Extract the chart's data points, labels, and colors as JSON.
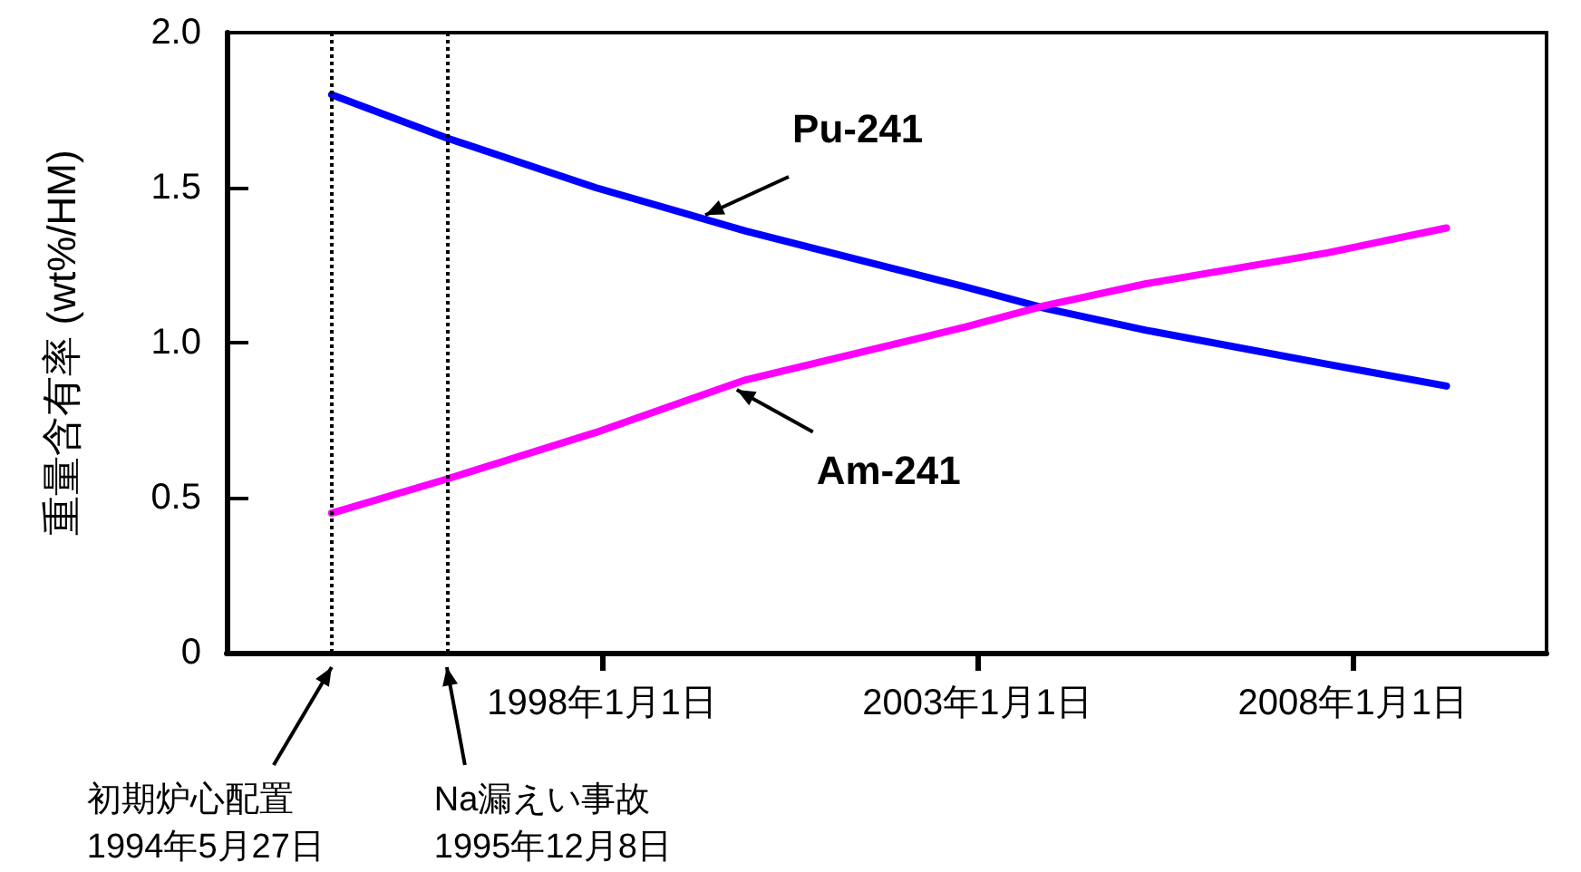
{
  "chart_data": {
    "type": "line",
    "ylabel": "重量含有率 (wt%/HM)",
    "xlim": [
      "1993-01-01",
      "2010-08-01"
    ],
    "xticks": [
      {
        "value": "1998-01-01",
        "label": "1998年1月1日"
      },
      {
        "value": "2003-01-01",
        "label": "2003年1月1日"
      },
      {
        "value": "2008-01-01",
        "label": "2008年1月1日"
      }
    ],
    "ylim": [
      0,
      2
    ],
    "yticks": [
      0,
      {
        "value": 0.5,
        "label": "0.5"
      },
      {
        "value": 1,
        "label": "1.0"
      },
      {
        "value": 1.5,
        "label": "1.5"
      },
      {
        "value": 2,
        "label": "2.0"
      }
    ],
    "grid": false,
    "line_style": "solid",
    "series": [
      {
        "color": "#0000ff",
        "x": [
          "1994-05-27",
          "1995-12-08",
          "1997-12",
          "1999-12",
          "2002-11",
          "2003-12",
          "2005-04",
          "2007-09",
          "2009-04"
        ],
        "values": [
          1.8,
          1.66,
          1.5,
          1.36,
          1.18,
          1.11,
          1.04,
          0.93,
          0.86
        ]
      },
      {
        "color": "#ff00ff",
        "x": [
          "1994-05-27",
          "1995-12-08",
          "1997-12",
          "1999-12",
          "2002-11",
          "2003-12",
          "2005-04",
          "2007-09",
          "2009-04"
        ],
        "values": [
          0.45,
          0.56,
          0.71,
          0.88,
          1.05,
          1.12,
          1.19,
          1.29,
          1.37
        ]
      }
    ],
    "annotations": [
      {
        "text": "Pu-241",
        "x": "1999-05",
        "y": 1.4
      },
      {
        "text": "Am-241",
        "x": "1999-10",
        "y": 0.86
      }
    ],
    "ref_lines": [
      {
        "axis": "x",
        "value": "1994-05-27",
        "label": "初期炉心配置\n1994年5月27日",
        "line_style": "dotted"
      },
      {
        "axis": "x",
        "value": "1995-12-08",
        "label": "Na漏えい事故\n1995年12月8日",
        "line_style": "dotted"
      }
    ]
  }
}
